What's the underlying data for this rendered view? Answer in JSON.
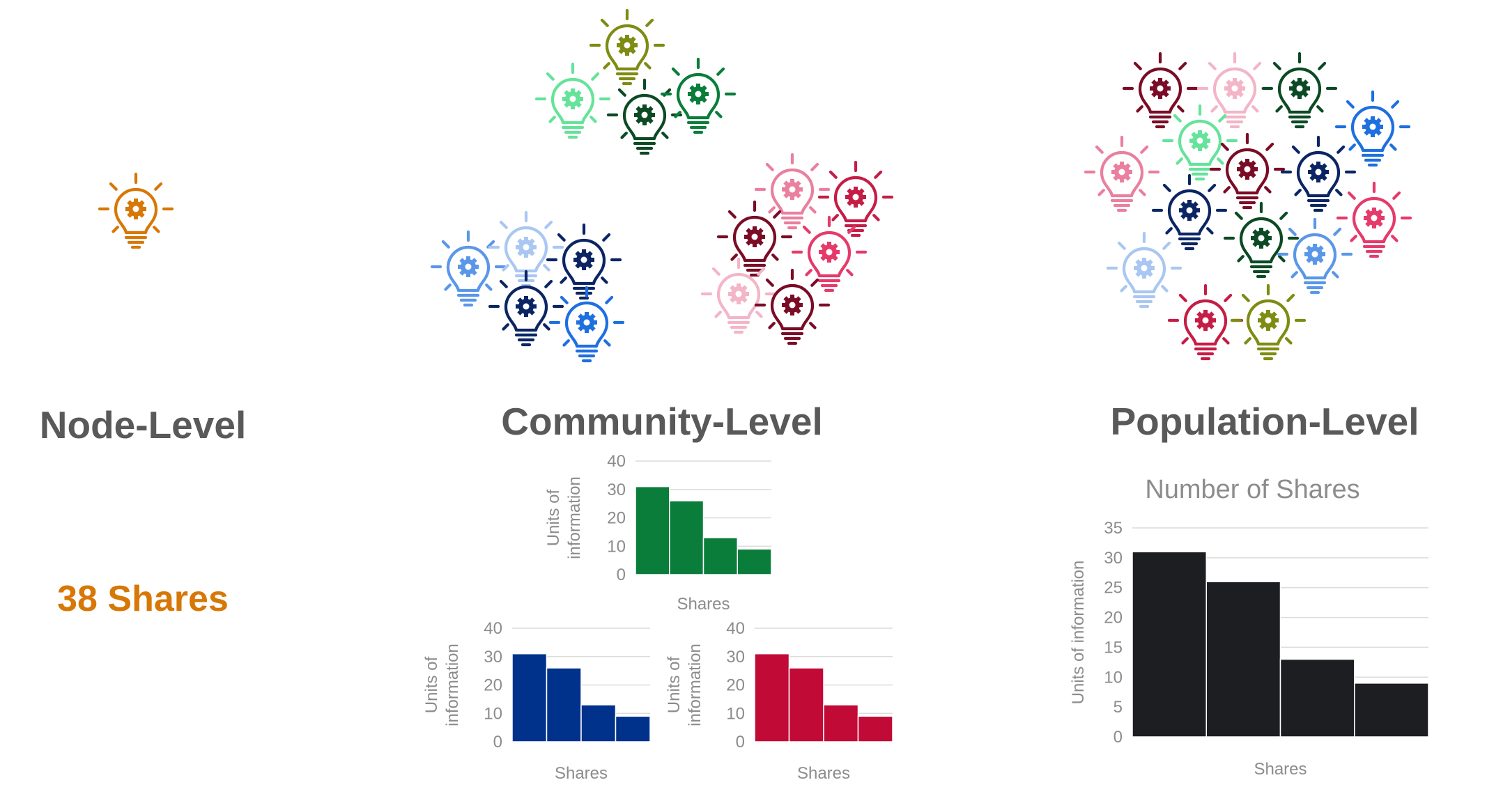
{
  "headings": {
    "node": "Node-Level",
    "community": "Community-Level",
    "population": "Population-Level"
  },
  "node_shares_label": "38 Shares",
  "icon_name": "lightbulb-gear-icon",
  "icon_colors": {
    "orange": "#d77706",
    "olive": "#7e8c12",
    "mint": "#66e39a",
    "green": "#0a7d3b",
    "darkgreen": "#0c4a24",
    "lightblue": "#5a97e8",
    "paleblue": "#a9c7f2",
    "navy": "#0b2564",
    "blue": "#1e6fe0",
    "maroon": "#7a0c25",
    "crimson": "#c51d45",
    "pink": "#ea7f9f",
    "palepink": "#f3b5c7",
    "rose": "#e63a6b"
  },
  "chart_data": [
    {
      "type": "bar",
      "series_color": "#0a7d3b",
      "values": [
        31,
        26,
        13,
        9
      ],
      "xlabel": "Shares",
      "ylabel": "Units of information",
      "ylim": [
        0,
        40
      ],
      "yticks": [
        "0",
        "10",
        "20",
        "30",
        "40"
      ],
      "grid": true
    },
    {
      "type": "bar",
      "series_color": "#00328c",
      "values": [
        31,
        26,
        13,
        9
      ],
      "xlabel": "Shares",
      "ylabel": "Units of information",
      "ylim": [
        0,
        40
      ],
      "yticks": [
        "0",
        "10",
        "20",
        "30",
        "40"
      ],
      "grid": true
    },
    {
      "type": "bar",
      "series_color": "#c20a36",
      "values": [
        31,
        26,
        13,
        9
      ],
      "xlabel": "Shares",
      "ylabel": "Units of information",
      "ylim": [
        0,
        40
      ],
      "yticks": [
        "0",
        "10",
        "20",
        "30",
        "40"
      ],
      "grid": true
    },
    {
      "type": "bar",
      "title": "Number of Shares",
      "series_color": "#1c1e21",
      "values": [
        31,
        26,
        13,
        9
      ],
      "xlabel": "Shares",
      "ylabel": "Units of information",
      "ylim": [
        0,
        35
      ],
      "yticks": [
        "0",
        "5",
        "10",
        "15",
        "20",
        "25",
        "30",
        "35"
      ],
      "grid": true
    }
  ]
}
